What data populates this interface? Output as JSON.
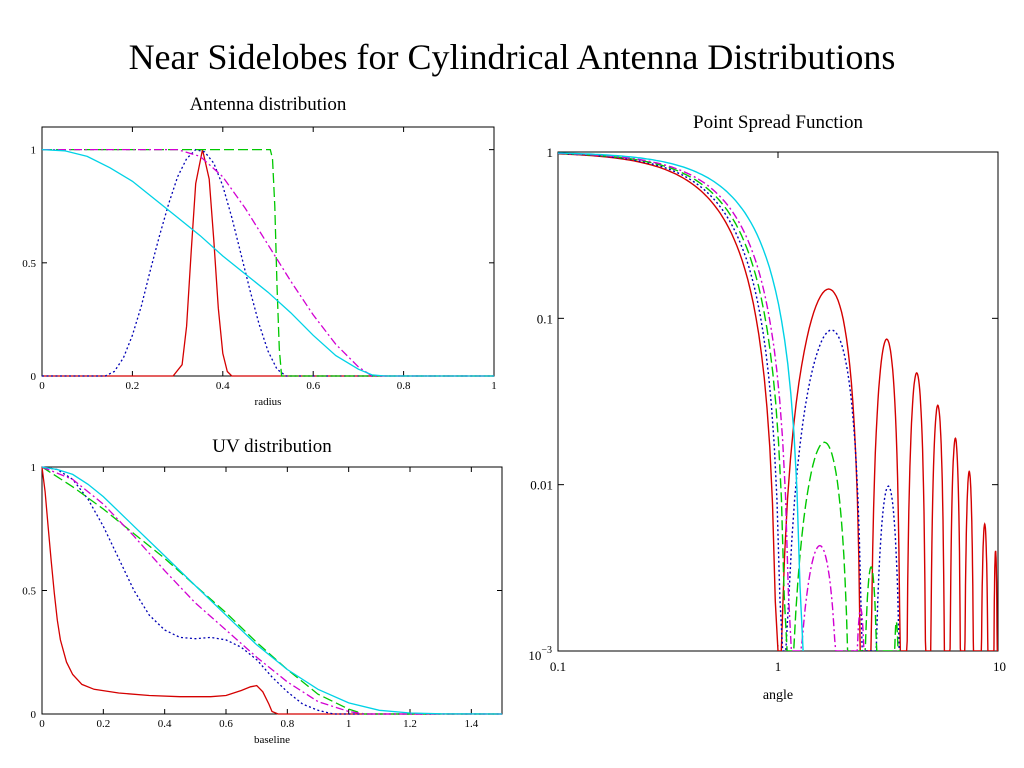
{
  "slide": {
    "title": "Near Sidelobes for Cylindrical Antenna Distributions"
  },
  "style": {
    "colors": {
      "red": "#d40000",
      "blue": "#0000b4",
      "green": "#00c800",
      "magenta": "#d200d2",
      "cyan": "#00d2e6"
    }
  },
  "chart_data": [
    {
      "type": "line",
      "title": "Antenna distribution",
      "xlabel": "radius",
      "ylabel": "",
      "xlim": [
        0,
        1
      ],
      "ylim": [
        0,
        1.1
      ],
      "xticks": [
        "0",
        "0.2",
        "0.4",
        "0.6",
        "0.8",
        "1"
      ],
      "yticks": [
        "0",
        "0.5",
        "1"
      ],
      "grid": false,
      "series": [
        {
          "color": "red",
          "dash": "solid",
          "points": [
            [
              0,
              0
            ],
            [
              0.29,
              0
            ],
            [
              0.31,
              0.05
            ],
            [
              0.32,
              0.22
            ],
            [
              0.33,
              0.55
            ],
            [
              0.34,
              0.85
            ],
            [
              0.355,
              1.0
            ],
            [
              0.37,
              0.87
            ],
            [
              0.38,
              0.6
            ],
            [
              0.39,
              0.3
            ],
            [
              0.4,
              0.1
            ],
            [
              0.41,
              0.02
            ],
            [
              0.42,
              0
            ],
            [
              1,
              0
            ]
          ]
        },
        {
          "color": "blue",
          "dash": "dot",
          "points": [
            [
              0,
              0
            ],
            [
              0.14,
              0
            ],
            [
              0.16,
              0.02
            ],
            [
              0.18,
              0.08
            ],
            [
              0.2,
              0.18
            ],
            [
              0.22,
              0.31
            ],
            [
              0.24,
              0.47
            ],
            [
              0.26,
              0.62
            ],
            [
              0.28,
              0.76
            ],
            [
              0.3,
              0.88
            ],
            [
              0.32,
              0.96
            ],
            [
              0.34,
              1.0
            ],
            [
              0.36,
              0.99
            ],
            [
              0.38,
              0.94
            ],
            [
              0.4,
              0.84
            ],
            [
              0.42,
              0.7
            ],
            [
              0.44,
              0.54
            ],
            [
              0.46,
              0.38
            ],
            [
              0.48,
              0.23
            ],
            [
              0.5,
              0.11
            ],
            [
              0.52,
              0.03
            ],
            [
              0.54,
              0
            ],
            [
              1,
              0
            ]
          ]
        },
        {
          "color": "green",
          "dash": "dash",
          "points": [
            [
              0,
              1.0
            ],
            [
              0.505,
              1.0
            ],
            [
              0.51,
              0.96
            ],
            [
              0.515,
              0.75
            ],
            [
              0.52,
              0.4
            ],
            [
              0.525,
              0.12
            ],
            [
              0.53,
              0
            ],
            [
              1,
              0
            ]
          ]
        },
        {
          "color": "magenta",
          "dash": "dashdot",
          "points": [
            [
              0,
              1.0
            ],
            [
              0.3,
              1.0
            ],
            [
              0.35,
              0.97
            ],
            [
              0.4,
              0.88
            ],
            [
              0.45,
              0.74
            ],
            [
              0.5,
              0.58
            ],
            [
              0.55,
              0.42
            ],
            [
              0.6,
              0.27
            ],
            [
              0.65,
              0.14
            ],
            [
              0.7,
              0.04
            ],
            [
              0.73,
              0
            ],
            [
              1,
              0
            ]
          ]
        },
        {
          "color": "cyan",
          "dash": "solid",
          "points": [
            [
              0,
              1.0
            ],
            [
              0.05,
              0.995
            ],
            [
              0.1,
              0.97
            ],
            [
              0.15,
              0.92
            ],
            [
              0.2,
              0.86
            ],
            [
              0.25,
              0.78
            ],
            [
              0.3,
              0.7
            ],
            [
              0.35,
              0.62
            ],
            [
              0.4,
              0.53
            ],
            [
              0.45,
              0.45
            ],
            [
              0.5,
              0.37
            ],
            [
              0.55,
              0.28
            ],
            [
              0.6,
              0.18
            ],
            [
              0.65,
              0.09
            ],
            [
              0.7,
              0.03
            ],
            [
              0.73,
              0.005
            ],
            [
              0.76,
              0
            ],
            [
              1,
              0
            ]
          ]
        }
      ]
    },
    {
      "type": "line",
      "title": "UV distribution",
      "xlabel": "baseline",
      "ylabel": "",
      "xlim": [
        0,
        1.5
      ],
      "ylim": [
        0,
        1.0
      ],
      "xticks": [
        "0",
        "0.2",
        "0.4",
        "0.6",
        "0.8",
        "1",
        "1.2",
        "1.4"
      ],
      "yticks": [
        "0",
        "0.5",
        "1"
      ],
      "grid": false,
      "series": [
        {
          "color": "red",
          "dash": "solid",
          "points": [
            [
              0,
              1.0
            ],
            [
              0.01,
              0.9
            ],
            [
              0.02,
              0.76
            ],
            [
              0.03,
              0.62
            ],
            [
              0.04,
              0.49
            ],
            [
              0.05,
              0.38
            ],
            [
              0.06,
              0.3
            ],
            [
              0.08,
              0.21
            ],
            [
              0.1,
              0.16
            ],
            [
              0.13,
              0.12
            ],
            [
              0.17,
              0.1
            ],
            [
              0.25,
              0.085
            ],
            [
              0.35,
              0.075
            ],
            [
              0.45,
              0.07
            ],
            [
              0.55,
              0.07
            ],
            [
              0.6,
              0.075
            ],
            [
              0.65,
              0.095
            ],
            [
              0.68,
              0.11
            ],
            [
              0.7,
              0.115
            ],
            [
              0.72,
              0.09
            ],
            [
              0.74,
              0.04
            ],
            [
              0.75,
              0.01
            ],
            [
              0.77,
              0
            ],
            [
              1.5,
              0
            ]
          ]
        },
        {
          "color": "blue",
          "dash": "dot",
          "points": [
            [
              0,
              1.0
            ],
            [
              0.05,
              0.99
            ],
            [
              0.1,
              0.95
            ],
            [
              0.15,
              0.87
            ],
            [
              0.2,
              0.76
            ],
            [
              0.25,
              0.63
            ],
            [
              0.3,
              0.5
            ],
            [
              0.35,
              0.4
            ],
            [
              0.4,
              0.34
            ],
            [
              0.45,
              0.31
            ],
            [
              0.5,
              0.305
            ],
            [
              0.55,
              0.31
            ],
            [
              0.6,
              0.3
            ],
            [
              0.65,
              0.27
            ],
            [
              0.7,
              0.22
            ],
            [
              0.75,
              0.15
            ],
            [
              0.8,
              0.09
            ],
            [
              0.85,
              0.04
            ],
            [
              0.9,
              0.015
            ],
            [
              0.95,
              0
            ],
            [
              1.5,
              0
            ]
          ]
        },
        {
          "color": "green",
          "dash": "dash",
          "points": [
            [
              0,
              1.0
            ],
            [
              0.1,
              0.92
            ],
            [
              0.2,
              0.83
            ],
            [
              0.3,
              0.73
            ],
            [
              0.4,
              0.63
            ],
            [
              0.5,
              0.52
            ],
            [
              0.6,
              0.41
            ],
            [
              0.7,
              0.29
            ],
            [
              0.8,
              0.18
            ],
            [
              0.9,
              0.08
            ],
            [
              1.0,
              0.02
            ],
            [
              1.05,
              0
            ],
            [
              1.5,
              0
            ]
          ]
        },
        {
          "color": "magenta",
          "dash": "dashdot",
          "points": [
            [
              0,
              1.0
            ],
            [
              0.1,
              0.95
            ],
            [
              0.2,
              0.85
            ],
            [
              0.3,
              0.72
            ],
            [
              0.4,
              0.58
            ],
            [
              0.5,
              0.45
            ],
            [
              0.6,
              0.34
            ],
            [
              0.7,
              0.23
            ],
            [
              0.8,
              0.13
            ],
            [
              0.9,
              0.05
            ],
            [
              1.0,
              0.01
            ],
            [
              1.05,
              0
            ],
            [
              1.5,
              0
            ]
          ]
        },
        {
          "color": "cyan",
          "dash": "solid",
          "points": [
            [
              0,
              1.0
            ],
            [
              0.05,
              0.99
            ],
            [
              0.1,
              0.97
            ],
            [
              0.15,
              0.93
            ],
            [
              0.2,
              0.88
            ],
            [
              0.3,
              0.76
            ],
            [
              0.4,
              0.64
            ],
            [
              0.5,
              0.52
            ],
            [
              0.6,
              0.4
            ],
            [
              0.7,
              0.28
            ],
            [
              0.8,
              0.18
            ],
            [
              0.9,
              0.1
            ],
            [
              1.0,
              0.045
            ],
            [
              1.1,
              0.015
            ],
            [
              1.2,
              0.004
            ],
            [
              1.3,
              0.001
            ],
            [
              1.5,
              0
            ]
          ]
        }
      ]
    },
    {
      "type": "line",
      "title": "Point Spread Function",
      "xlabel": "angle",
      "ylabel": "",
      "xscale": "log",
      "yscale": "log",
      "xlim": [
        0.1,
        10
      ],
      "ylim": [
        0.001,
        1
      ],
      "xticks": [
        "0.1",
        "1",
        "10"
      ],
      "yticks": [
        "1",
        "0.1",
        "0.01",
        "10^-3"
      ],
      "grid": false,
      "series": [
        {
          "color": "red",
          "dash": "solid",
          "mainlobe_null": 1.0,
          "lobes": [
            [
              1.0,
              2.4,
              0.15
            ],
            [
              2.62,
              3.62,
              0.075
            ],
            [
              3.82,
              4.72,
              0.047
            ],
            [
              4.9,
              5.75,
              0.03
            ],
            [
              6.0,
              6.8,
              0.019
            ],
            [
              7.0,
              7.8,
              0.012
            ],
            [
              8.3,
              9.1,
              0.0058
            ],
            [
              9.5,
              10,
              0.004
            ]
          ]
        },
        {
          "color": "blue",
          "dash": "dot",
          "mainlobe_null": 1.05,
          "lobes": [
            [
              1.05,
              2.45,
              0.085
            ],
            [
              2.7,
              3.65,
              0.0098
            ]
          ]
        },
        {
          "color": "green",
          "dash": "dash",
          "mainlobe_null": 1.1,
          "lobes": [
            [
              1.1,
              2.15,
              0.018
            ],
            [
              2.4,
              2.9,
              0.0032
            ],
            [
              3.3,
              3.6,
              0.0015
            ]
          ]
        },
        {
          "color": "magenta",
          "dash": "dashdot",
          "mainlobe_null": 1.15,
          "lobes": [
            [
              1.15,
              1.95,
              0.0043
            ],
            [
              2.2,
              2.55,
              0.0018
            ]
          ]
        },
        {
          "color": "cyan",
          "dash": "solid",
          "mainlobe_null": 1.3,
          "lobes": []
        }
      ]
    }
  ]
}
